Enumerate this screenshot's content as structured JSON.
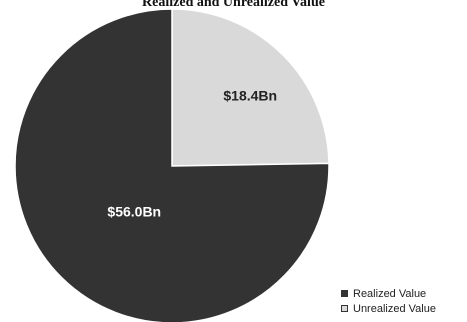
{
  "chart_data": {
    "type": "pie",
    "title": "Realized and Unrealized Value",
    "slices": [
      {
        "name": "Realized Value",
        "value": 56.0,
        "label": "$56.0Bn",
        "color": "#333333",
        "label_color": "#ffffff"
      },
      {
        "name": "Unrealized Value",
        "value": 18.4,
        "label": "$18.4Bn",
        "color": "#d9d9d9",
        "label_color": "#222222"
      }
    ],
    "legend_position": "bottom-right",
    "edge_color": "#ffffff"
  }
}
